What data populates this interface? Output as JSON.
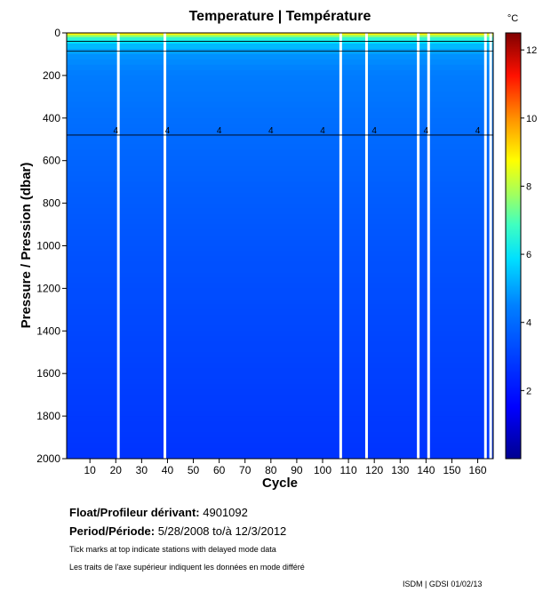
{
  "chart_data": {
    "type": "heatmap",
    "title": "Temperature | Température",
    "xlabel": "Cycle",
    "ylabel": "Pressure / Pression (dbar)",
    "xlim": [
      1,
      166
    ],
    "ylim": [
      2000,
      0
    ],
    "x_ticks": [
      10,
      20,
      30,
      40,
      50,
      60,
      70,
      80,
      90,
      100,
      110,
      120,
      130,
      140,
      150,
      160
    ],
    "y_ticks": [
      0,
      200,
      400,
      600,
      800,
      1000,
      1200,
      1400,
      1600,
      1800,
      2000
    ],
    "colorbar": {
      "unit": "°C",
      "range": [
        0,
        12.5
      ],
      "ticks": [
        2,
        4,
        6,
        8,
        10,
        12
      ]
    },
    "contour_levels": [
      4,
      5,
      6
    ],
    "contour_label": "4",
    "missing_profile_cycles": [
      21,
      39,
      107,
      117,
      137,
      141,
      163,
      165
    ],
    "profile": [
      {
        "p": 0,
        "t": 9.5
      },
      {
        "p": 20,
        "t": 7.0
      },
      {
        "p": 50,
        "t": 5.5
      },
      {
        "p": 100,
        "t": 4.8
      },
      {
        "p": 200,
        "t": 4.4
      },
      {
        "p": 400,
        "t": 4.1
      },
      {
        "p": 600,
        "t": 3.85
      },
      {
        "p": 800,
        "t": 3.65
      },
      {
        "p": 1000,
        "t": 3.45
      },
      {
        "p": 1200,
        "t": 3.3
      },
      {
        "p": 1400,
        "t": 3.15
      },
      {
        "p": 1600,
        "t": 3.0
      },
      {
        "p": 1800,
        "t": 2.85
      },
      {
        "p": 2000,
        "t": 2.7
      }
    ]
  },
  "info": {
    "float_label": "Float/Profileur dérivant:",
    "float_value": "4901092",
    "period_label": "Period/Période:",
    "period_value": "5/28/2008  to/à  12/3/2012",
    "note_en": "Tick marks at top indicate stations with delayed mode data",
    "note_fr": "Les traits de l'axe supérieur indiquent les données en mode différé",
    "credit": "ISDM | GDSI  01/02/13"
  }
}
